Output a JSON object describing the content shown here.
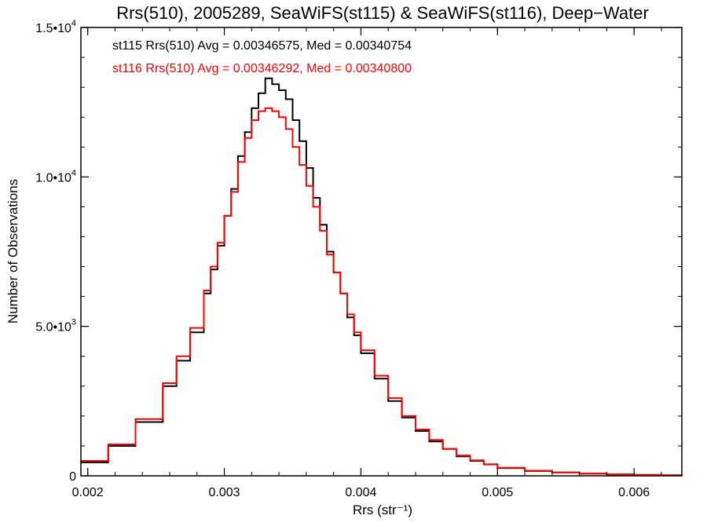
{
  "chart_data": {
    "type": "line",
    "title": "Rrs(510), 2005289, SeaWiFS(st115) & SeaWiFS(st116), Deep−Water",
    "xlabel": "Rrs (str⁻¹)",
    "ylabel": "Number of Observations",
    "xlim": [
      0.00195,
      0.00635
    ],
    "ylim": [
      0,
      15000
    ],
    "x_ticks": [
      0.002,
      0.003,
      0.004,
      0.005,
      0.006
    ],
    "x_tick_labels": [
      "0.002",
      "0.003",
      "0.004",
      "0.005",
      "0.006"
    ],
    "y_ticks": [
      0,
      5000,
      10000,
      15000
    ],
    "y_tick_labels": [
      {
        "base": "0",
        "exp": ""
      },
      {
        "base": "5.0•1",
        "exp": "3"
      },
      {
        "base": "1.0•1",
        "exp": "4"
      },
      {
        "base": "1.5•1",
        "exp": "4"
      }
    ],
    "grid": false,
    "annotations": [
      {
        "text": "st115 Rrs(510) Avg = 0.00346575, Med = 0.00340754",
        "color": "#000000"
      },
      {
        "text": "st116 Rrs(510) Avg = 0.00346292, Med = 0.00340800",
        "color": "#ff0000"
      }
    ],
    "x": [
      0.00195,
      0.00215,
      0.00235,
      0.00255,
      0.00265,
      0.00275,
      0.00285,
      0.0029,
      0.00295,
      0.003,
      0.00305,
      0.0031,
      0.00315,
      0.0032,
      0.00325,
      0.0033,
      0.00335,
      0.0034,
      0.00345,
      0.0035,
      0.00355,
      0.0036,
      0.00365,
      0.0037,
      0.00375,
      0.0038,
      0.00385,
      0.0039,
      0.00395,
      0.004,
      0.0041,
      0.0042,
      0.0043,
      0.0044,
      0.0045,
      0.0046,
      0.0047,
      0.0048,
      0.0049,
      0.005,
      0.0052,
      0.0054,
      0.0056,
      0.0058,
      0.006,
      0.0062,
      0.00635
    ],
    "series": [
      {
        "name": "st115",
        "color": "#000000",
        "values": [
          450,
          1000,
          1800,
          3000,
          3850,
          4800,
          6100,
          6900,
          7700,
          8700,
          9600,
          10700,
          11500,
          12300,
          12800,
          13300,
          13100,
          12900,
          12600,
          11900,
          11200,
          10300,
          9300,
          8400,
          7500,
          6800,
          6100,
          5300,
          4700,
          4100,
          3250,
          2500,
          1950,
          1500,
          1150,
          900,
          650,
          500,
          380,
          260,
          160,
          110,
          70,
          45,
          30,
          20,
          15
        ]
      },
      {
        "name": "st116",
        "color": "#ff0000",
        "values": [
          500,
          1050,
          1900,
          3100,
          4000,
          4950,
          6200,
          7000,
          7800,
          8700,
          9500,
          10500,
          11300,
          11900,
          12200,
          12300,
          12200,
          12000,
          11600,
          11000,
          10400,
          9700,
          9000,
          8200,
          7400,
          6800,
          6100,
          5400,
          4800,
          4200,
          3350,
          2600,
          2000,
          1550,
          1200,
          900,
          680,
          520,
          390,
          270,
          170,
          115,
          75,
          48,
          32,
          22,
          16
        ]
      }
    ]
  }
}
